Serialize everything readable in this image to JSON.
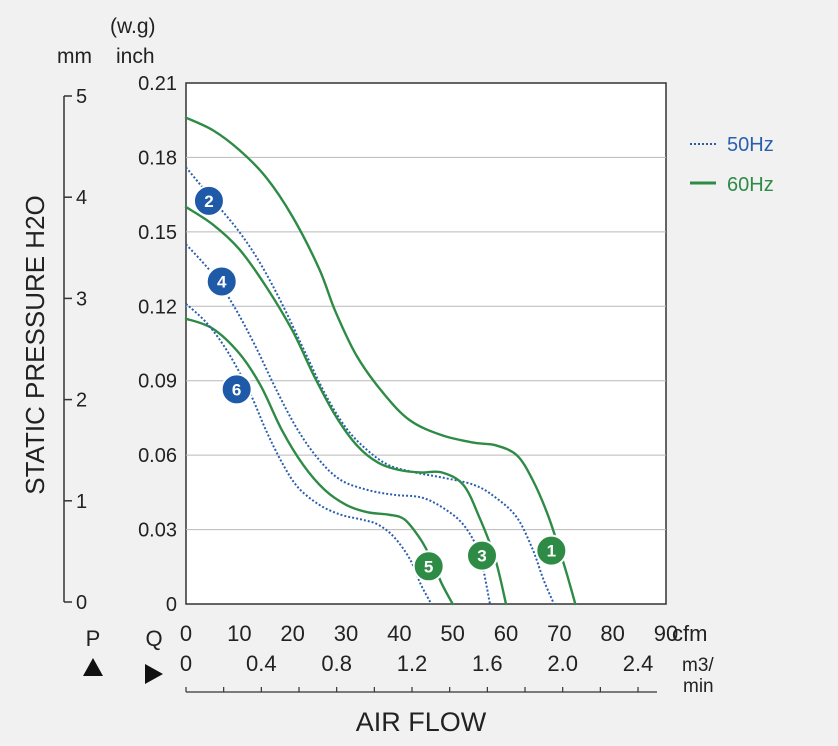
{
  "chart_data": {
    "type": "line",
    "ylabel": "STATIC PRESSURE H2O",
    "xlabel": "AIR FLOW",
    "y_inch_unit_top": "(w.g)",
    "y_inch_unit": "inch",
    "y_mm_unit": "mm",
    "y_inch_ticks": [
      "0.21",
      "0.18",
      "0.15",
      "0.12",
      "0.09",
      "0.06",
      "0.03",
      "0"
    ],
    "y_mm_ticks": [
      "5",
      "4",
      "3",
      "2",
      "1",
      "0"
    ],
    "x_cfm_ticks": [
      "0",
      "10",
      "20",
      "30",
      "40",
      "50",
      "60",
      "70",
      "80",
      "90"
    ],
    "x_cfm_unit": "cfm",
    "x_m3_ticks": [
      "0",
      "0.4",
      "0.8",
      "1.2",
      "1.6",
      "2.0",
      "2.4"
    ],
    "x_m3_unit_top": "m3/",
    "x_m3_unit_bottom": "min",
    "p_label": "P",
    "q_label": "Q",
    "xlim": [
      0,
      90
    ],
    "ylim": [
      0,
      0.21
    ],
    "grid": true,
    "legend_position": "top-right",
    "legend": [
      {
        "label": "50Hz",
        "style": "dotted",
        "color": "#2a5fae"
      },
      {
        "label": "60Hz",
        "style": "solid",
        "color": "#2e8b46"
      }
    ],
    "series": [
      {
        "label": "1",
        "freq": "60Hz",
        "color": "#2e8b46",
        "style": "solid",
        "points": [
          [
            0,
            0.196
          ],
          [
            5,
            0.191
          ],
          [
            10,
            0.183
          ],
          [
            15,
            0.172
          ],
          [
            20,
            0.156
          ],
          [
            25,
            0.135
          ],
          [
            28,
            0.118
          ],
          [
            32,
            0.1
          ],
          [
            37,
            0.085
          ],
          [
            42,
            0.074
          ],
          [
            48,
            0.068
          ],
          [
            54,
            0.065
          ],
          [
            58,
            0.064
          ],
          [
            62,
            0.06
          ],
          [
            65,
            0.05
          ],
          [
            68,
            0.035
          ],
          [
            71,
            0.015
          ],
          [
            73,
            0.0
          ]
        ]
      },
      {
        "label": "2",
        "freq": "50Hz",
        "color": "#2a5fae",
        "style": "dotted",
        "points": [
          [
            0,
            0.176
          ],
          [
            5,
            0.163
          ],
          [
            10,
            0.15
          ],
          [
            14,
            0.137
          ],
          [
            18,
            0.121
          ],
          [
            22,
            0.103
          ],
          [
            26,
            0.085
          ],
          [
            30,
            0.071
          ],
          [
            34,
            0.062
          ],
          [
            38,
            0.056
          ],
          [
            43,
            0.053
          ],
          [
            48,
            0.051
          ],
          [
            54,
            0.048
          ],
          [
            58,
            0.043
          ],
          [
            62,
            0.035
          ],
          [
            65,
            0.022
          ],
          [
            67,
            0.01
          ],
          [
            69,
            0.0
          ]
        ]
      },
      {
        "label": "3",
        "freq": "60Hz",
        "color": "#2e8b46",
        "style": "solid",
        "points": [
          [
            0,
            0.16
          ],
          [
            5,
            0.153
          ],
          [
            10,
            0.143
          ],
          [
            15,
            0.128
          ],
          [
            20,
            0.11
          ],
          [
            24,
            0.092
          ],
          [
            28,
            0.076
          ],
          [
            32,
            0.064
          ],
          [
            36,
            0.057
          ],
          [
            40,
            0.054
          ],
          [
            44,
            0.053
          ],
          [
            48,
            0.053
          ],
          [
            52,
            0.048
          ],
          [
            55,
            0.035
          ],
          [
            58,
            0.018
          ],
          [
            60,
            0.0
          ]
        ]
      },
      {
        "label": "4",
        "freq": "50Hz",
        "color": "#2a5fae",
        "style": "dotted",
        "points": [
          [
            0,
            0.145
          ],
          [
            5,
            0.133
          ],
          [
            9,
            0.12
          ],
          [
            13,
            0.104
          ],
          [
            17,
            0.086
          ],
          [
            21,
            0.07
          ],
          [
            25,
            0.058
          ],
          [
            29,
            0.05
          ],
          [
            34,
            0.046
          ],
          [
            39,
            0.044
          ],
          [
            44,
            0.043
          ],
          [
            48,
            0.039
          ],
          [
            52,
            0.032
          ],
          [
            55,
            0.02
          ],
          [
            57,
            0.0
          ]
        ]
      },
      {
        "label": "5",
        "freq": "60Hz",
        "color": "#2e8b46",
        "style": "solid",
        "points": [
          [
            0,
            0.115
          ],
          [
            5,
            0.111
          ],
          [
            10,
            0.101
          ],
          [
            14,
            0.088
          ],
          [
            18,
            0.07
          ],
          [
            22,
            0.056
          ],
          [
            26,
            0.046
          ],
          [
            30,
            0.04
          ],
          [
            34,
            0.037
          ],
          [
            38,
            0.036
          ],
          [
            41,
            0.034
          ],
          [
            44,
            0.026
          ],
          [
            46,
            0.018
          ],
          [
            48,
            0.008
          ],
          [
            50,
            0.0
          ]
        ]
      },
      {
        "label": "6",
        "freq": "50Hz",
        "color": "#2a5fae",
        "style": "dotted",
        "points": [
          [
            0,
            0.121
          ],
          [
            4,
            0.113
          ],
          [
            8,
            0.101
          ],
          [
            12,
            0.085
          ],
          [
            15,
            0.07
          ],
          [
            18,
            0.057
          ],
          [
            21,
            0.047
          ],
          [
            25,
            0.04
          ],
          [
            29,
            0.036
          ],
          [
            33,
            0.034
          ],
          [
            36,
            0.032
          ],
          [
            39,
            0.027
          ],
          [
            42,
            0.018
          ],
          [
            44,
            0.008
          ],
          [
            46,
            0.0
          ]
        ]
      }
    ],
    "markers": [
      {
        "label": "1",
        "x": 68.5,
        "y": 0.0215,
        "color": "#2e8b46"
      },
      {
        "label": "2",
        "x": 4.3,
        "y": 0.1625,
        "color": "#1e5aa8"
      },
      {
        "label": "3",
        "x": 55.5,
        "y": 0.0195,
        "color": "#2e8b46"
      },
      {
        "label": "4",
        "x": 6.7,
        "y": 0.13,
        "color": "#1e5aa8"
      },
      {
        "label": "5",
        "x": 45.5,
        "y": 0.0152,
        "color": "#2e8b46"
      },
      {
        "label": "6",
        "x": 9.5,
        "y": 0.0865,
        "color": "#1e5aa8"
      }
    ]
  }
}
